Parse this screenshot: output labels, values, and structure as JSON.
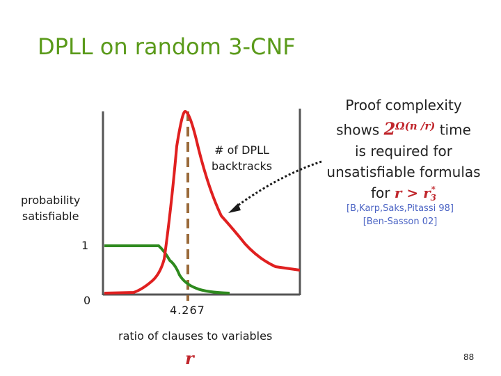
{
  "title": "DPLL on random 3-CNF",
  "y_axis": {
    "label_line1": "probability",
    "label_line2": "satisfiable",
    "tick_top": "1",
    "tick_bottom": "0"
  },
  "x_axis": {
    "threshold_label": "4.267",
    "label": "ratio of clauses to variables",
    "variable": "r"
  },
  "annotation": {
    "line1": "# of DPLL",
    "line2": "backtracks"
  },
  "proof_box": {
    "line1": "Proof complexity",
    "shows": "shows",
    "bound_base": "2",
    "bound_exp": "Ω(n /r)",
    "time": "time",
    "line3": "is required for",
    "line4": "unsatisfiable formulas",
    "for": "for",
    "cond": "r > r",
    "cond_sup": "*",
    "cond_sub": "3",
    "cite1": "[B,Karp,Saks,Pitassi 98]",
    "cite2": "[Ben-Sasson 02]"
  },
  "page_number": "88",
  "colors": {
    "title": "#5a9a1a",
    "backtracks": "#e02020",
    "probability": "#2e8a1e",
    "threshold": "#9a6a3a",
    "math": "#c0262c",
    "citation": "#4a63c4"
  }
}
